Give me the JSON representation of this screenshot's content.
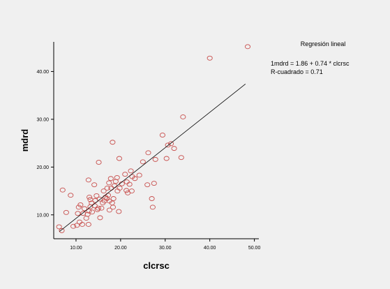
{
  "legend": {
    "title": "Regresión lineal",
    "equation": "1mdrd = 1.86 + 0.74 * clcrsc",
    "r_squared": "R-cuadrado = 0.71"
  },
  "colors": {
    "background": "#f0f0f0",
    "points": "#c8504e",
    "axis": "#000000",
    "line": "#000000"
  },
  "chart_data": {
    "type": "scatter",
    "xlabel": "clcrsc",
    "ylabel": "mdrd",
    "xlim": [
      5,
      51
    ],
    "ylim": [
      5,
      46.2
    ],
    "xticks": [
      10,
      20,
      30,
      40,
      50
    ],
    "xtick_labels": [
      "10.00",
      "20.00",
      "30.00",
      "40.00",
      "50.00"
    ],
    "yticks": [
      10,
      20,
      30,
      40
    ],
    "ytick_labels": [
      "10.00",
      "20.00",
      "30.00",
      "40.00"
    ],
    "grid": false,
    "legend_placement": "top-right",
    "fit_line": {
      "intercept": 1.86,
      "slope": 0.74,
      "x_range": [
        6.3,
        48.0
      ]
    },
    "points": [
      [
        6.2,
        7.5
      ],
      [
        6.8,
        6.7
      ],
      [
        7.0,
        15.2
      ],
      [
        7.8,
        10.5
      ],
      [
        8.8,
        14.1
      ],
      [
        9.4,
        7.6
      ],
      [
        10.2,
        7.8
      ],
      [
        10.4,
        10.3
      ],
      [
        10.6,
        11.6
      ],
      [
        10.8,
        8.5
      ],
      [
        11.0,
        12.1
      ],
      [
        11.4,
        8.0
      ],
      [
        11.6,
        10.3
      ],
      [
        11.9,
        11.3
      ],
      [
        12.3,
        9.3
      ],
      [
        12.6,
        10.1
      ],
      [
        12.8,
        8.0
      ],
      [
        12.9,
        10.8
      ],
      [
        12.8,
        17.3
      ],
      [
        13.2,
        11.7
      ],
      [
        13.0,
        13.7
      ],
      [
        13.5,
        12.5
      ],
      [
        13.6,
        10.6
      ],
      [
        13.2,
        13.2
      ],
      [
        14.2,
        11.9
      ],
      [
        14.3,
        13.0
      ],
      [
        14.1,
        16.3
      ],
      [
        14.6,
        14.0
      ],
      [
        14.8,
        11.1
      ],
      [
        15.0,
        11.4
      ],
      [
        15.1,
        21.0
      ],
      [
        15.3,
        13.3
      ],
      [
        15.4,
        9.4
      ],
      [
        15.7,
        11.4
      ],
      [
        16.0,
        12.5
      ],
      [
        16.2,
        15.0
      ],
      [
        16.4,
        12.9
      ],
      [
        16.6,
        13.7
      ],
      [
        16.9,
        13.4
      ],
      [
        17.0,
        15.6
      ],
      [
        17.2,
        14.1
      ],
      [
        17.4,
        16.7
      ],
      [
        17.5,
        12.9
      ],
      [
        17.5,
        11.0
      ],
      [
        17.8,
        17.6
      ],
      [
        17.9,
        15.6
      ],
      [
        18.1,
        12.5
      ],
      [
        18.3,
        11.6
      ],
      [
        18.2,
        25.2
      ],
      [
        18.4,
        13.4
      ],
      [
        18.6,
        16.1
      ],
      [
        18.9,
        17.0
      ],
      [
        19.2,
        17.8
      ],
      [
        19.3,
        15.0
      ],
      [
        19.6,
        10.7
      ],
      [
        19.8,
        15.6
      ],
      [
        19.7,
        21.8
      ],
      [
        20.3,
        16.5
      ],
      [
        21.0,
        18.5
      ],
      [
        21.3,
        15.1
      ],
      [
        21.4,
        16.9
      ],
      [
        21.6,
        14.6
      ],
      [
        22.0,
        16.4
      ],
      [
        22.3,
        19.2
      ],
      [
        22.5,
        15.0
      ],
      [
        22.6,
        18.0
      ],
      [
        23.2,
        17.6
      ],
      [
        24.2,
        18.3
      ],
      [
        25.0,
        21.1
      ],
      [
        26.0,
        16.3
      ],
      [
        26.2,
        23.0
      ],
      [
        27.0,
        13.4
      ],
      [
        27.2,
        11.6
      ],
      [
        27.5,
        16.6
      ],
      [
        27.8,
        21.6
      ],
      [
        29.4,
        26.7
      ],
      [
        30.3,
        21.8
      ],
      [
        30.6,
        24.6
      ],
      [
        31.3,
        24.9
      ],
      [
        32.0,
        23.9
      ],
      [
        33.6,
        22.0
      ],
      [
        34.0,
        30.5
      ],
      [
        40.0,
        42.8
      ],
      [
        48.5,
        45.2
      ]
    ]
  }
}
